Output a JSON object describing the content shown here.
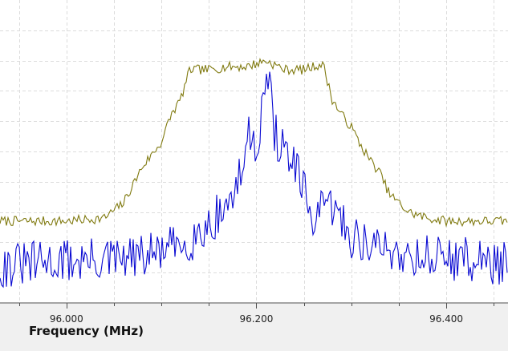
{
  "xlabel": "Frequency (MHz)",
  "colors": {
    "plot_background": "#ffffff",
    "grid": "#dcdcdc",
    "axis": "#505050",
    "max_hold_trace": "#807a10",
    "live_trace": "#0a0ad2"
  },
  "chart_data": {
    "type": "line",
    "title": "",
    "xlabel": "Frequency (MHz)",
    "ylabel": "",
    "xlim": [
      95.93,
      96.465
    ],
    "ylim": [
      0,
      100
    ],
    "grid": true,
    "x_ticks": [
      96.0,
      96.2,
      96.4
    ],
    "x_tick_labels": [
      "96.000",
      "96.200",
      "96.400"
    ],
    "series": [
      {
        "color": "#807a10",
        "x": [
          95.93,
          96.0,
          96.04,
          96.06,
          96.08,
          96.1,
          96.11,
          96.12,
          96.13,
          96.14,
          96.15,
          96.17,
          96.19,
          96.21,
          96.23,
          96.25,
          96.27,
          96.28,
          96.29,
          96.3,
          96.31,
          96.32,
          96.33,
          96.34,
          96.36,
          96.38,
          96.4,
          96.465
        ],
        "y": [
          27,
          27,
          28,
          33,
          45,
          53,
          62,
          67,
          77,
          77,
          77,
          78,
          78,
          80,
          77,
          77,
          79,
          67,
          62,
          58,
          52,
          47,
          43,
          36,
          30,
          28,
          27,
          27
        ]
      },
      {
        "color": "#0a0ad2",
        "x": [
          95.93,
          96.0,
          96.05,
          96.08,
          96.1,
          96.12,
          96.14,
          96.16,
          96.17,
          96.18,
          96.19,
          96.195,
          96.2,
          96.205,
          96.21,
          96.215,
          96.22,
          96.23,
          96.24,
          96.25,
          96.26,
          96.27,
          96.28,
          96.3,
          96.33,
          96.36,
          96.4,
          96.465
        ],
        "y": [
          12,
          14,
          14,
          15,
          17,
          19,
          23,
          29,
          33,
          38,
          52,
          57,
          53,
          60,
          76,
          68,
          55,
          50,
          45,
          36,
          28,
          30,
          32,
          22,
          18,
          16,
          15,
          13
        ]
      }
    ]
  }
}
